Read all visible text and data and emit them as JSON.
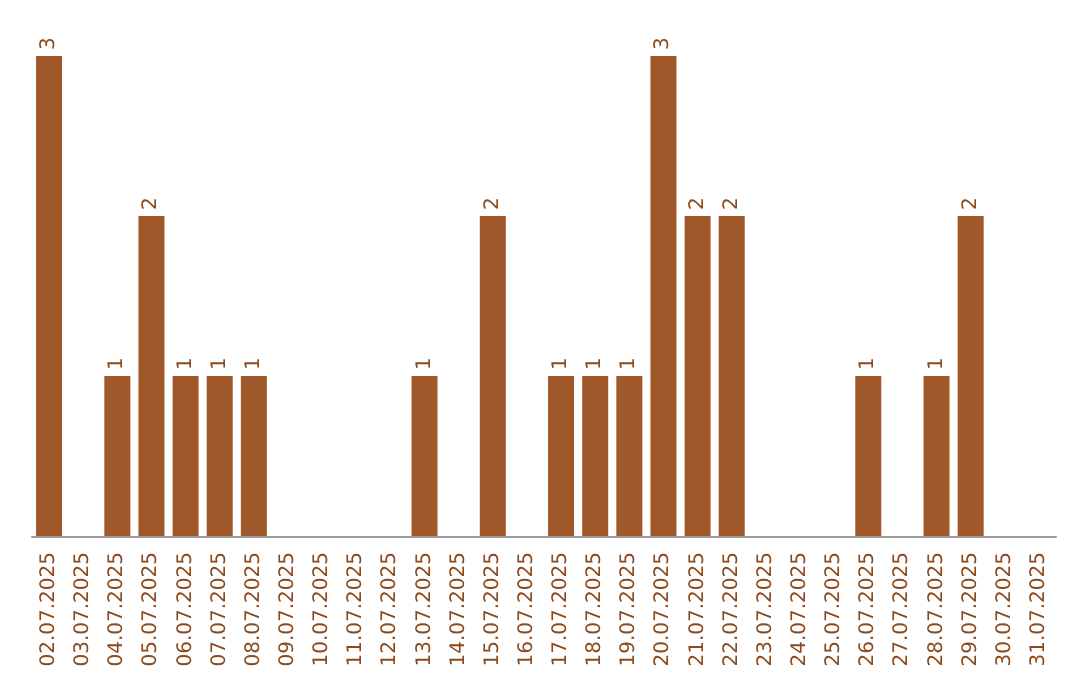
{
  "chart_data": {
    "type": "bar",
    "color": "#a0572a",
    "categories": [
      "02.07.2025",
      "03.07.2025",
      "04.07.2025",
      "05.07.2025",
      "06.07.2025",
      "07.07.2025",
      "08.07.2025",
      "09.07.2025",
      "10.07.2025",
      "11.07.2025",
      "12.07.2025",
      "13.07.2025",
      "14.07.2025",
      "15.07.2025",
      "16.07.2025",
      "17.07.2025",
      "18.07.2025",
      "19.07.2025",
      "20.07.2025",
      "21.07.2025",
      "22.07.2025",
      "23.07.2025",
      "24.07.2025",
      "25.07.2025",
      "26.07.2025",
      "27.07.2025",
      "28.07.2025",
      "29.07.2025",
      "30.07.2025",
      "31.07.2025"
    ],
    "values": [
      3,
      0,
      1,
      2,
      1,
      1,
      1,
      0,
      0,
      0,
      0,
      1,
      0,
      2,
      0,
      1,
      1,
      1,
      3,
      2,
      2,
      0,
      0,
      0,
      1,
      0,
      1,
      2,
      0,
      0
    ],
    "value_labels": [
      "3",
      null,
      "1",
      "2",
      "1",
      "1",
      "1",
      null,
      null,
      null,
      null,
      "1",
      null,
      "2",
      null,
      "1",
      "1",
      "1",
      "3",
      "2",
      "2",
      null,
      null,
      null,
      "1",
      null,
      "1",
      "2",
      null,
      null
    ]
  }
}
